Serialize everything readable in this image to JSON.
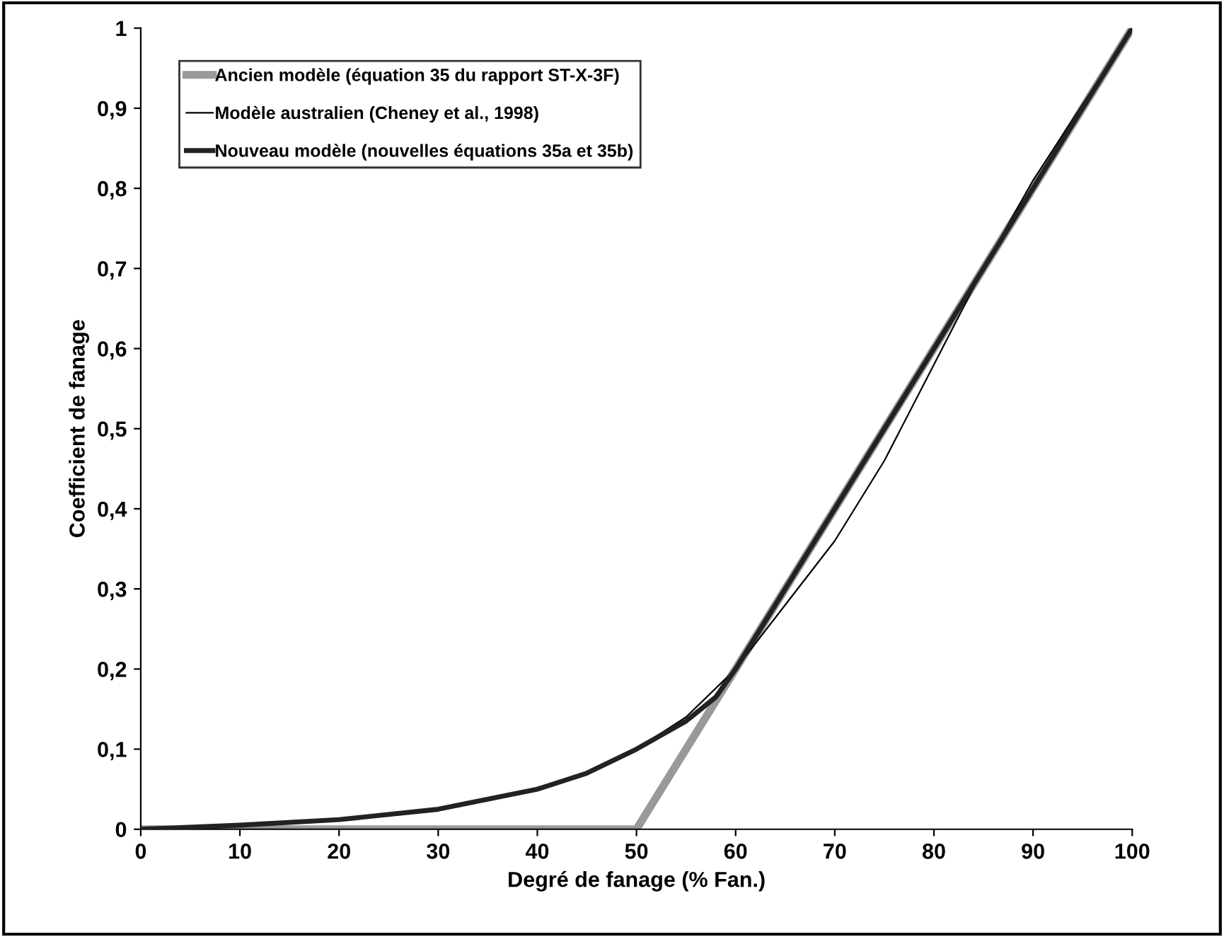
{
  "chart_data": {
    "type": "line",
    "xlabel": "Degré de fanage (% Fan.)",
    "ylabel": "Coefficient de fanage",
    "xlim": [
      0,
      100
    ],
    "xticks": [
      0,
      10,
      20,
      30,
      40,
      50,
      60,
      70,
      80,
      90,
      100
    ],
    "ylim": [
      0,
      1
    ],
    "yticks": [
      0,
      {
        "value": 0.1,
        "label": "0,1"
      },
      {
        "value": 0.2,
        "label": "0,2"
      },
      {
        "value": 0.3,
        "label": "0,3"
      },
      {
        "value": 0.4,
        "label": "0,4"
      },
      {
        "value": 0.5,
        "label": "0,5"
      },
      {
        "value": 0.6,
        "label": "0,6"
      },
      {
        "value": 0.7,
        "label": "0,7"
      },
      {
        "value": 0.8,
        "label": "0,8"
      },
      {
        "value": 0.9,
        "label": "0,9"
      },
      1
    ],
    "grid": false,
    "legend": "top left",
    "marker": "none",
    "line_style": "solid",
    "series": [
      {
        "name": "Ancien modèle (équation 35 du rapport ST-X-3F)",
        "color": "#999999",
        "x": [
          0,
          50,
          100
        ],
        "values": [
          0,
          0,
          1
        ]
      },
      {
        "name": "Modèle australien (Cheney et al., 1998)",
        "color": "#000000",
        "x": [
          0,
          10,
          20,
          30,
          40,
          45,
          50,
          55,
          60,
          65,
          70,
          75,
          80,
          85,
          90,
          95,
          100
        ],
        "values": [
          0,
          0.005,
          0.012,
          0.025,
          0.05,
          0.07,
          0.1,
          0.14,
          0.2,
          0.28,
          0.36,
          0.46,
          0.58,
          0.7,
          0.81,
          0.905,
          1
        ]
      },
      {
        "name": "Nouveau modèle (nouvelles équations 35a et 35b)",
        "color": "#222222",
        "x": [
          0,
          10,
          20,
          30,
          40,
          45,
          50,
          55,
          58,
          60,
          100
        ],
        "values": [
          0,
          0.005,
          0.012,
          0.025,
          0.05,
          0.07,
          0.1,
          0.135,
          0.165,
          0.2,
          1
        ]
      }
    ]
  }
}
